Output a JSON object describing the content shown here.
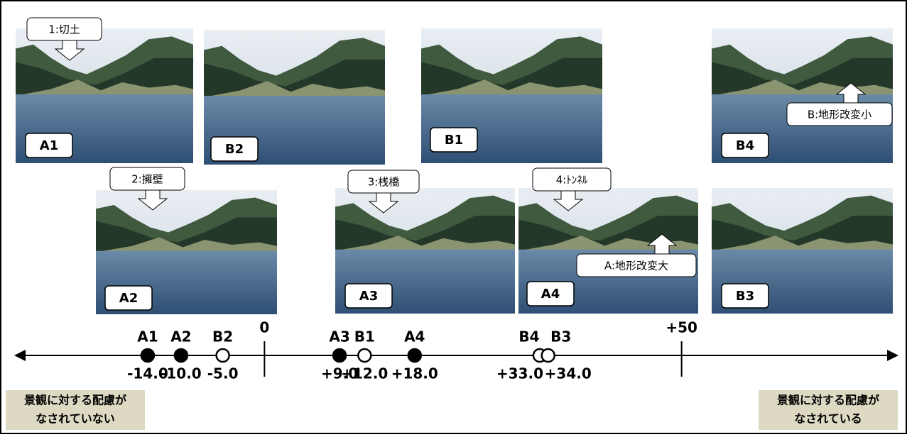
{
  "photos": [
    {
      "label": "A1"
    },
    {
      "label": "B2"
    },
    {
      "label": "B1"
    },
    {
      "label": "B4"
    },
    {
      "label": "A2"
    },
    {
      "label": "A3"
    },
    {
      "label": "A4"
    },
    {
      "label": "B3"
    }
  ],
  "callouts": [
    {
      "text": "1:切土"
    },
    {
      "text": "2:擁壁"
    },
    {
      "text": "3:桟橋"
    },
    {
      "text": "4:ﾄﾝﾈﾙ"
    },
    {
      "text": "A:地形改変大"
    },
    {
      "text": "B:地形改変小"
    }
  ],
  "scale": {
    "xlim": [
      -30,
      76
    ],
    "xticks": [
      0,
      {
        "value": 50,
        "label": "+50"
      }
    ],
    "points": [
      {
        "name": "A1",
        "value": -14,
        "value_label": "-14.0",
        "filled": true
      },
      {
        "name": "A2",
        "value": -10,
        "value_label": "-10.0",
        "filled": true
      },
      {
        "name": "B2",
        "value": -5,
        "value_label": "-5.0",
        "filled": false
      },
      {
        "name": "A3",
        "value": 9,
        "value_label": "+9.0",
        "filled": true
      },
      {
        "name": "B1",
        "value": 12,
        "value_label": "+12.0",
        "filled": false
      },
      {
        "name": "A4",
        "value": 18,
        "value_label": "+18.0",
        "filled": true
      },
      {
        "name": "B4",
        "value": 33,
        "value_label": "+33.0",
        "filled": false
      },
      {
        "name": "B3",
        "value": 34,
        "value_label": "+34.0",
        "filled": false
      }
    ]
  },
  "left_note": {
    "lines": [
      "景観に対する配慮が",
      "なされていない"
    ]
  },
  "right_note": {
    "lines": [
      "景観に対する配慮が",
      "なされている"
    ]
  }
}
